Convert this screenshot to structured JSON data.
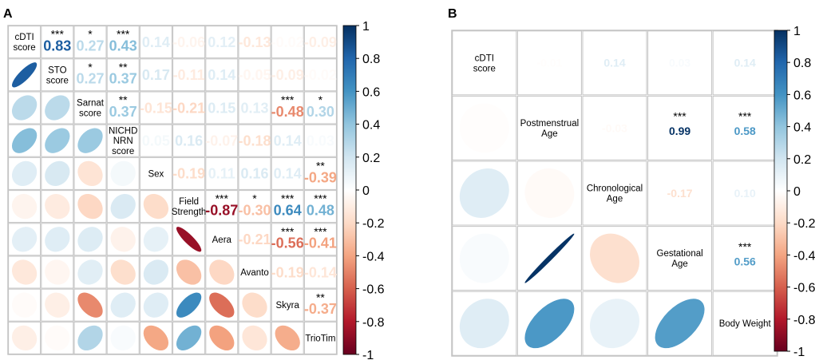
{
  "chart_data": [
    {
      "type": "heatmap",
      "subtype": "correlation-matrix",
      "panel_label": "A",
      "variables": [
        "cDTI score",
        "STO score",
        "Sarnat score",
        "NICHD NRN score",
        "Sex",
        "Field Strength",
        "Aera",
        "Avanto",
        "Skyra",
        "TrioTim"
      ],
      "matrix": [
        [
          1,
          0.83,
          0.27,
          0.43,
          0.14,
          -0.06,
          0.12,
          -0.13,
          -0.02,
          -0.09
        ],
        [
          0.83,
          1,
          0.27,
          0.37,
          0.17,
          -0.11,
          0.14,
          -0.05,
          -0.09,
          -0.02
        ],
        [
          0.27,
          0.27,
          1,
          0.37,
          -0.15,
          -0.21,
          0.15,
          0.13,
          -0.48,
          0.3
        ],
        [
          0.43,
          0.37,
          0.37,
          1,
          0.05,
          0.16,
          -0.07,
          -0.18,
          0.14,
          0.03
        ],
        [
          0.14,
          0.17,
          -0.15,
          0.05,
          1,
          -0.19,
          0.11,
          0.16,
          0.14,
          -0.39
        ],
        [
          -0.06,
          -0.11,
          -0.21,
          0.16,
          -0.19,
          1,
          -0.87,
          -0.3,
          0.64,
          0.48
        ],
        [
          0.12,
          0.14,
          0.15,
          -0.07,
          0.11,
          -0.87,
          1,
          -0.21,
          -0.56,
          -0.41
        ],
        [
          -0.13,
          -0.05,
          0.13,
          -0.18,
          0.16,
          -0.3,
          -0.21,
          1,
          -0.19,
          -0.14
        ],
        [
          -0.02,
          -0.09,
          -0.48,
          0.14,
          0.14,
          0.64,
          -0.56,
          -0.19,
          1,
          -0.37
        ],
        [
          -0.09,
          -0.02,
          0.3,
          0.03,
          -0.39,
          0.48,
          -0.41,
          -0.14,
          -0.37,
          1
        ]
      ],
      "significance": [
        [
          "",
          "***",
          "*",
          "***",
          "",
          "",
          "",
          "",
          "",
          ""
        ],
        [
          "",
          "",
          "*",
          "**",
          "",
          "",
          "",
          "",
          "",
          ""
        ],
        [
          "",
          "",
          "",
          "**",
          "",
          "",
          "",
          "",
          "***",
          "*"
        ],
        [
          "",
          "",
          "",
          "",
          "",
          "",
          "",
          "",
          "",
          ""
        ],
        [
          "",
          "",
          "",
          "",
          "",
          "",
          "",
          "",
          "",
          "**"
        ],
        [
          "",
          "",
          "",
          "",
          "",
          "",
          "***",
          "*",
          "***",
          "***"
        ],
        [
          "",
          "",
          "",
          "",
          "",
          "",
          "",
          "",
          "***",
          "***"
        ],
        [
          "",
          "",
          "",
          "",
          "",
          "",
          "",
          "",
          "",
          ""
        ],
        [
          "",
          "",
          "",
          "",
          "",
          "",
          "",
          "",
          "",
          "**"
        ],
        [
          "",
          "",
          "",
          "",
          "",
          "",
          "",
          "",
          "",
          ""
        ]
      ],
      "upper": "number",
      "lower": "ellipse",
      "colorbar": {
        "min": -1,
        "max": 1,
        "ticks": [
          "1",
          "0.8",
          "0.6",
          "0.4",
          "0.2",
          "0",
          "-0.2",
          "-0.4",
          "-0.6",
          "-0.8",
          "-1"
        ]
      }
    },
    {
      "type": "heatmap",
      "subtype": "correlation-matrix",
      "panel_label": "B",
      "variables": [
        "cDTI score",
        "Postmenstrual Age",
        "Chronological Age",
        "Gestational Age",
        "Body Weight"
      ],
      "matrix": [
        [
          1,
          -0.01,
          0.14,
          0.03,
          0.14
        ],
        [
          -0.01,
          1,
          -0.03,
          0.99,
          0.58
        ],
        [
          0.14,
          -0.03,
          1,
          -0.17,
          0.1
        ],
        [
          0.03,
          0.99,
          -0.17,
          1,
          0.56
        ],
        [
          0.14,
          0.58,
          0.1,
          0.56,
          1
        ]
      ],
      "significance": [
        [
          "",
          "",
          "",
          "",
          ""
        ],
        [
          "",
          "",
          "",
          "***",
          "***"
        ],
        [
          "",
          "",
          "",
          "",
          ""
        ],
        [
          "",
          "",
          "",
          "",
          "***"
        ],
        [
          "",
          "",
          "",
          "",
          ""
        ]
      ],
      "upper": "number",
      "lower": "ellipse",
      "colorbar": {
        "min": -1,
        "max": 1,
        "ticks": [
          "1",
          "0.8",
          "0.6",
          "0.4",
          "0.2",
          "0",
          "-0.2",
          "-0.4",
          "-0.6",
          "-0.8",
          "-1"
        ]
      }
    }
  ],
  "variable_label_lines": [
    [
      [
        "cDTI",
        "score"
      ],
      [
        "STO",
        "score"
      ],
      [
        "Sarnat",
        "score"
      ],
      [
        "NICHD",
        "NRN",
        "score"
      ],
      [
        "Sex"
      ],
      [
        "Field",
        "Strength"
      ],
      [
        "Aera"
      ],
      [
        "Avanto"
      ],
      [
        "Skyra"
      ],
      [
        "TrioTim"
      ]
    ],
    [
      [
        "cDTI",
        "score"
      ],
      [
        "Postmenstrual",
        "Age"
      ],
      [
        "Chronological",
        "Age"
      ],
      [
        "Gestational",
        "Age"
      ],
      [
        "Body Weight"
      ]
    ]
  ],
  "palette": {
    "stops": [
      "#67001F",
      "#B2182B",
      "#D6604D",
      "#F4A582",
      "#FDDBC7",
      "#FFFFFF",
      "#D1E5F0",
      "#92C5DE",
      "#4393C3",
      "#2166AC",
      "#053061"
    ],
    "grid": "#c4c4c4",
    "text": "#000000"
  }
}
